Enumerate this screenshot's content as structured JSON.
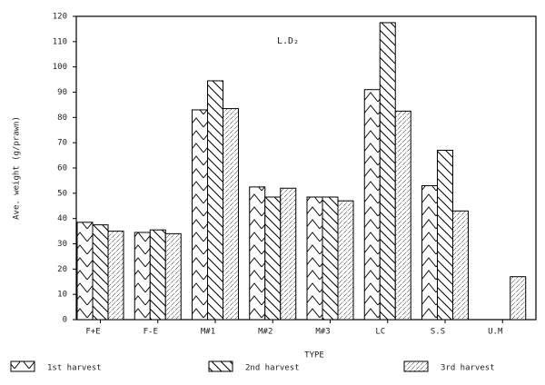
{
  "chart_data": {
    "type": "bar",
    "annotation": "L.D₂",
    "x_label": "TYPE",
    "y_label": "Ave. weight (g/prawn)",
    "categories": [
      "F+E",
      "F-E",
      "M#1",
      "M#2",
      "M#3",
      "LC",
      "S.S",
      "U.M"
    ],
    "series": [
      {
        "name": "1st harvest",
        "color": "#000000",
        "values": [
          38.5,
          34.5,
          83,
          52.5,
          48.5,
          91,
          53,
          0
        ]
      },
      {
        "name": "2nd harvest",
        "color": "#000000",
        "values": [
          37.5,
          35.5,
          94.5,
          48.5,
          48.5,
          117.5,
          67,
          0
        ]
      },
      {
        "name": "3rd harvest",
        "color": "#000000",
        "values": [
          35,
          34,
          83.5,
          52,
          47,
          82.5,
          43,
          17
        ]
      }
    ],
    "ylim": [
      0,
      120
    ],
    "yticks": [
      0,
      10,
      20,
      30,
      40,
      50,
      60,
      70,
      80,
      90,
      100,
      110,
      120
    ]
  }
}
